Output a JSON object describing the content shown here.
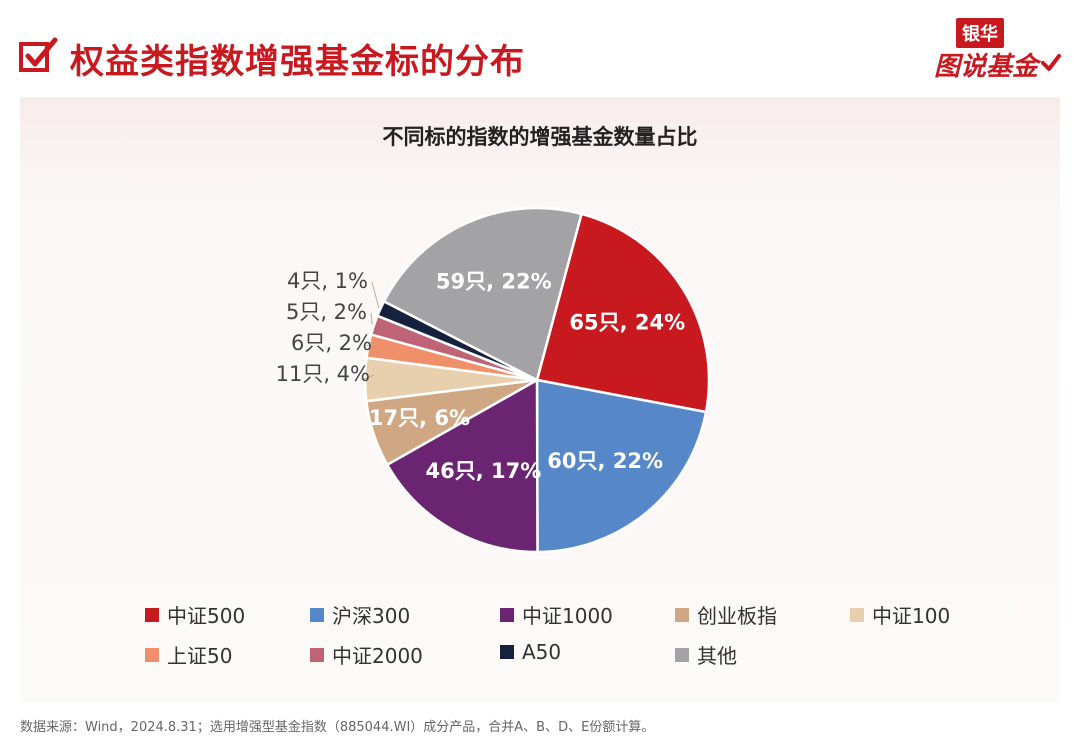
{
  "header": {
    "title": "权益类指数增强基金标的分布",
    "brand_line1": "银华",
    "brand_line2": "图说基金",
    "accent_color": "#c8191f",
    "check_icon": "checkbox-check-icon"
  },
  "source_note": "数据来源：Wind，2024.8.31；选用增强型基金指数（885044.WI）成分产品，合并A、B、D、E份额计算。",
  "chart_data": {
    "type": "pie",
    "title": "不同标的指数的增强基金数量占比",
    "start_angle_deg": 15,
    "direction": "clockwise",
    "legend_position": "bottom",
    "series": [
      {
        "name": "中证500",
        "value": 65,
        "percent": 24,
        "label": "65只, 24%",
        "color": "#c8191f"
      },
      {
        "name": "沪深300",
        "value": 60,
        "percent": 22,
        "label": "60只, 22%",
        "color": "#5687c8"
      },
      {
        "name": "中证1000",
        "value": 46,
        "percent": 17,
        "label": "46只, 17%",
        "color": "#6a2472"
      },
      {
        "name": "创业板指",
        "value": 17,
        "percent": 6,
        "label": "17只, 6%",
        "color": "#cfa883"
      },
      {
        "name": "中证100",
        "value": 11,
        "percent": 4,
        "label": "11只, 4%",
        "color": "#e8cfae"
      },
      {
        "name": "上证50",
        "value": 6,
        "percent": 2,
        "label": "6只, 2%",
        "color": "#f0906a"
      },
      {
        "name": "中证2000",
        "value": 5,
        "percent": 2,
        "label": "5只, 2%",
        "color": "#bf6377"
      },
      {
        "name": "A50",
        "value": 4,
        "percent": 1,
        "label": "4只, 1%",
        "color": "#15213e"
      },
      {
        "name": "其他",
        "value": 59,
        "percent": 22,
        "label": "59只, 22%",
        "color": "#a3a3a5"
      }
    ]
  }
}
